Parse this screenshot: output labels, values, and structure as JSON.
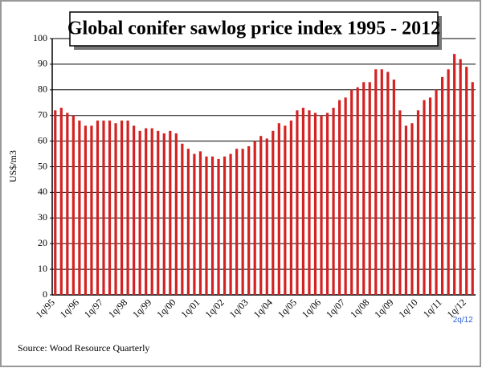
{
  "chart_data": {
    "type": "bar",
    "title": "Global conifer sawlog price index 1995 - 2012",
    "y_label": "US$/m3",
    "source": "Source: Wood Resource Quarterly",
    "categories": [
      "1q/95",
      null,
      null,
      null,
      "1q/96",
      null,
      null,
      null,
      "1q/97",
      null,
      null,
      null,
      "1q/98",
      null,
      null,
      null,
      "1q/99",
      null,
      null,
      null,
      "1q/00",
      null,
      null,
      null,
      "1q/01",
      null,
      null,
      null,
      "1q/02",
      null,
      null,
      null,
      "1q/03",
      null,
      null,
      null,
      "1q/04",
      null,
      null,
      null,
      "1q/05",
      null,
      null,
      null,
      "1q/06",
      null,
      null,
      null,
      "1q/07",
      null,
      null,
      null,
      "1q/08",
      null,
      null,
      null,
      "1q/09",
      null,
      null,
      null,
      "1q/10",
      null,
      null,
      null,
      "1q/11",
      null,
      null,
      null,
      "1q/12",
      "2q/12"
    ],
    "values": [
      72,
      73,
      71,
      70,
      68,
      66,
      66,
      68,
      68,
      68,
      67,
      68,
      68,
      66,
      64,
      65,
      65,
      64,
      63,
      64,
      63,
      59,
      57,
      55,
      56,
      54,
      54,
      53,
      54,
      55,
      57,
      57,
      58,
      60,
      62,
      61,
      64,
      67,
      66,
      68,
      72,
      73,
      72,
      71,
      70,
      71,
      73,
      76,
      77,
      80,
      81,
      83,
      83,
      88,
      88,
      87,
      84,
      72,
      66,
      67,
      72,
      76,
      77,
      80,
      85,
      88,
      94,
      92,
      89,
      83
    ],
    "color": "#d42222",
    "last_label_color": "#2a5bd7",
    "ylim": [
      0,
      100
    ],
    "yticks": [
      0,
      10,
      20,
      30,
      40,
      50,
      60,
      70,
      80,
      90,
      100
    ],
    "grid": true
  }
}
